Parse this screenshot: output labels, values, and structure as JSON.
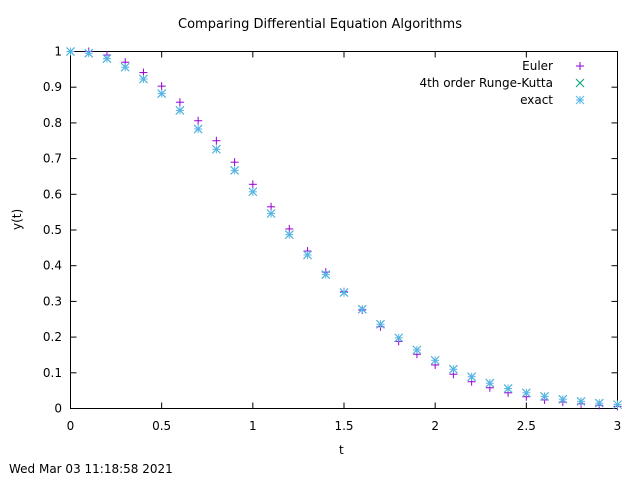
{
  "chart_data": {
    "type": "scatter",
    "title": "Comparing Differential Equation Algorithms",
    "xlabel": "t",
    "ylabel": "y(t)",
    "xlim": [
      0,
      3
    ],
    "ylim": [
      0,
      1
    ],
    "x_ticks": [
      "0",
      "0.5",
      "1",
      "1.5",
      "2",
      "2.5",
      "3"
    ],
    "y_ticks": [
      "0",
      "0.1",
      "0.2",
      "0.3",
      "0.4",
      "0.5",
      "0.6",
      "0.7",
      "0.8",
      "0.9",
      "1"
    ],
    "grid": false,
    "legend_position": "top-right",
    "x": [
      0,
      0.1,
      0.2,
      0.3,
      0.4,
      0.5,
      0.6,
      0.7,
      0.8,
      0.9,
      1.0,
      1.1,
      1.2,
      1.3,
      1.4,
      1.5,
      1.6,
      1.7,
      1.8,
      1.9,
      2.0,
      2.1,
      2.2,
      2.3,
      2.4,
      2.5,
      2.6,
      2.7,
      2.8,
      2.9,
      3.0
    ],
    "series": [
      {
        "name": "Euler",
        "marker": "plus",
        "color": "#9400d3",
        "values": [
          1.0,
          1.0,
          0.99,
          0.97,
          0.941,
          0.903,
          0.858,
          0.806,
          0.75,
          0.69,
          0.628,
          0.565,
          0.503,
          0.441,
          0.382,
          0.327,
          0.276,
          0.229,
          0.188,
          0.152,
          0.122,
          0.096,
          0.075,
          0.058,
          0.044,
          0.033,
          0.024,
          0.018,
          0.013,
          0.009,
          0.006
        ]
      },
      {
        "name": "4th order Runge-Kutta",
        "marker": "cross",
        "color": "#009e73",
        "values": [
          1.0,
          0.995,
          0.98,
          0.956,
          0.923,
          0.882,
          0.835,
          0.783,
          0.726,
          0.667,
          0.607,
          0.546,
          0.487,
          0.43,
          0.375,
          0.325,
          0.278,
          0.236,
          0.198,
          0.164,
          0.135,
          0.11,
          0.089,
          0.071,
          0.056,
          0.044,
          0.034,
          0.026,
          0.02,
          0.015,
          0.011
        ]
      },
      {
        "name": "exact",
        "marker": "star",
        "color": "#56b4e9",
        "values": [
          1.0,
          0.995,
          0.98,
          0.956,
          0.923,
          0.882,
          0.835,
          0.783,
          0.726,
          0.667,
          0.607,
          0.546,
          0.487,
          0.43,
          0.375,
          0.325,
          0.278,
          0.236,
          0.198,
          0.164,
          0.135,
          0.11,
          0.089,
          0.071,
          0.056,
          0.044,
          0.034,
          0.026,
          0.02,
          0.015,
          0.011
        ]
      }
    ]
  },
  "footer": {
    "timestamp": "Wed Mar 03 11:18:58 2021"
  }
}
